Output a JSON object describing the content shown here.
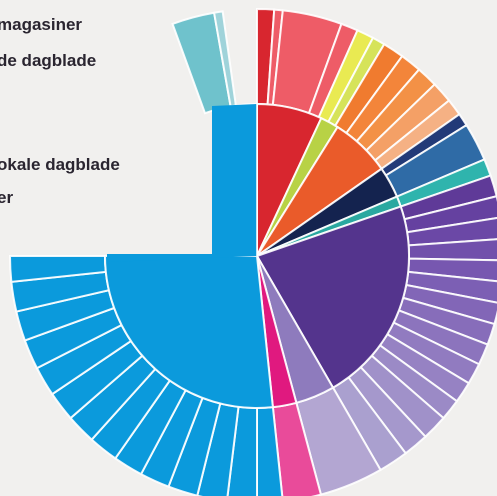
{
  "chart_data": {
    "type": "sunburst",
    "title": "",
    "legend": [
      "magasiner",
      "de dagblade",
      "okale dagblade",
      "er"
    ],
    "center_deg": 0,
    "inner_ring": [
      {
        "name": "red",
        "color": "#d8262f",
        "start": 0,
        "end": 25
      },
      {
        "name": "lime",
        "color": "#b8d245",
        "start": 25,
        "end": 32
      },
      {
        "name": "orange",
        "color": "#ea5b2a",
        "start": 32,
        "end": 55
      },
      {
        "name": "navy",
        "color": "#14234f",
        "start": 55,
        "end": 67
      },
      {
        "name": "teal",
        "color": "#2aa8a0",
        "start": 67,
        "end": 71
      },
      {
        "name": "purple",
        "color": "#54348d",
        "start": 71,
        "end": 150
      },
      {
        "name": "lavender",
        "color": "#8e7bbd",
        "start": 150,
        "end": 165
      },
      {
        "name": "magenta",
        "color": "#e0197f",
        "start": 165,
        "end": 174
      },
      {
        "name": "blue",
        "color": "#0b9adc",
        "start": 174,
        "end": 270
      },
      {
        "name": "blue-top",
        "color": "#0b9adc",
        "start": 352,
        "end": 360
      }
    ],
    "outer_ring": [
      {
        "color": "#d8262f",
        "start": 0,
        "end": 4
      },
      {
        "color": "#ee5c67",
        "start": 4,
        "end": 6
      },
      {
        "color": "#ee5c67",
        "start": 6,
        "end": 20
      },
      {
        "color": "#ee5c67",
        "start": 20,
        "end": 24
      },
      {
        "color": "#e9ea52",
        "start": 24,
        "end": 28
      },
      {
        "color": "#d6e35a",
        "start": 28,
        "end": 31
      },
      {
        "color": "#f07b2f",
        "start": 31,
        "end": 36
      },
      {
        "color": "#f3853a",
        "start": 36,
        "end": 41
      },
      {
        "color": "#f39146",
        "start": 41,
        "end": 46
      },
      {
        "color": "#f4a066",
        "start": 46,
        "end": 51
      },
      {
        "color": "#f5b184",
        "start": 51,
        "end": 55
      },
      {
        "color": "#223a78",
        "start": 55,
        "end": 58
      },
      {
        "color": "#2f6ba6",
        "start": 58,
        "end": 67
      },
      {
        "color": "#2fb4ad",
        "start": 67,
        "end": 71
      },
      {
        "color": "#5f3a98",
        "start": 71,
        "end": 76
      },
      {
        "color": "#6541a0",
        "start": 76,
        "end": 81
      },
      {
        "color": "#6b48a6",
        "start": 81,
        "end": 86
      },
      {
        "color": "#7150ab",
        "start": 86,
        "end": 91
      },
      {
        "color": "#7757b0",
        "start": 91,
        "end": 96
      },
      {
        "color": "#7c5fb4",
        "start": 96,
        "end": 101
      },
      {
        "color": "#8266b7",
        "start": 101,
        "end": 106
      },
      {
        "color": "#876dba",
        "start": 106,
        "end": 111
      },
      {
        "color": "#8c74bd",
        "start": 111,
        "end": 116
      },
      {
        "color": "#917bc0",
        "start": 116,
        "end": 121
      },
      {
        "color": "#9682c3",
        "start": 121,
        "end": 126
      },
      {
        "color": "#9b8ac6",
        "start": 126,
        "end": 131
      },
      {
        "color": "#a091c9",
        "start": 131,
        "end": 137
      },
      {
        "color": "#a598cc",
        "start": 137,
        "end": 143
      },
      {
        "color": "#aaa0cf",
        "start": 143,
        "end": 150
      },
      {
        "color": "#b3a6d2",
        "start": 150,
        "end": 165
      },
      {
        "color": "#e94b9a",
        "start": 165,
        "end": 174
      },
      {
        "color": "#0b9adc",
        "start": 174,
        "end": 180
      },
      {
        "color": "#0b9adc",
        "start": 180,
        "end": 187
      },
      {
        "color": "#0b9adc",
        "start": 187,
        "end": 194
      },
      {
        "color": "#0b9adc",
        "start": 194,
        "end": 201
      },
      {
        "color": "#0b9adc",
        "start": 201,
        "end": 208
      },
      {
        "color": "#0b9adc",
        "start": 208,
        "end": 215
      },
      {
        "color": "#0b9adc",
        "start": 215,
        "end": 222
      },
      {
        "color": "#0b9adc",
        "start": 222,
        "end": 229
      },
      {
        "color": "#0b9adc",
        "start": 229,
        "end": 236
      },
      {
        "color": "#0b9adc",
        "start": 236,
        "end": 243
      },
      {
        "color": "#0b9adc",
        "start": 243,
        "end": 250
      },
      {
        "color": "#0b9adc",
        "start": 250,
        "end": 257
      },
      {
        "color": "#0b9adc",
        "start": 257,
        "end": 264
      },
      {
        "color": "#0b9adc",
        "start": 264,
        "end": 270
      },
      {
        "color": "#6fc2cc",
        "start": 340,
        "end": 350
      },
      {
        "color": "#9fd3da",
        "start": 350,
        "end": 352
      }
    ]
  }
}
